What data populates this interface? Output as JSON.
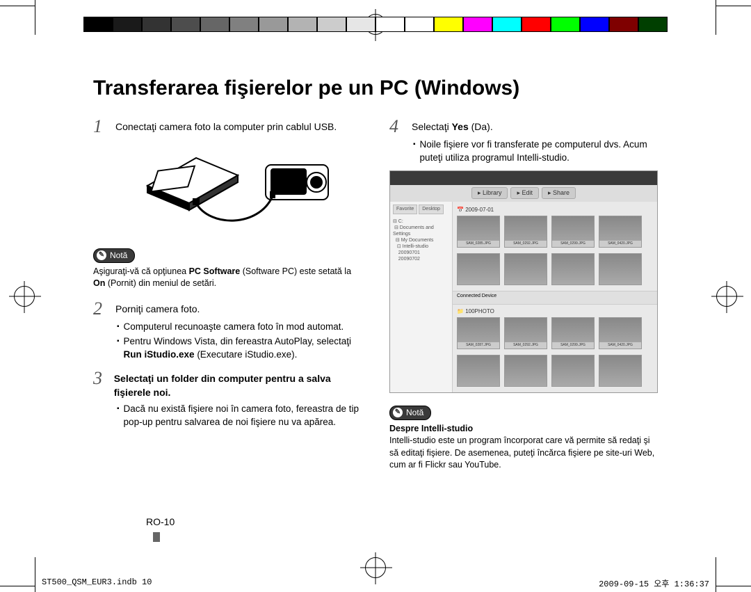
{
  "colorbar": {
    "swatches": [
      "#000000",
      "#1a1a1a",
      "#333333",
      "#4d4d4d",
      "#666666",
      "#808080",
      "#999999",
      "#b3b3b3",
      "#cccccc",
      "#e6e6e6",
      "#ffffff",
      "#ffffff",
      "#ffff00",
      "#ff00ff",
      "#00ffff",
      "#ff0000",
      "#00ff00",
      "#0000ff",
      "#7f0000",
      "#003f00"
    ]
  },
  "title": "Transferarea fişierelor pe un PC (Windows)",
  "steps": {
    "s1_num": "1",
    "s1_text": "Conectaţi camera foto la computer prin cablul USB.",
    "s2_num": "2",
    "s2_text": "Porniţi camera foto.",
    "s2_b1": "Computerul recunoaşte camera foto în mod automat.",
    "s2_b2_pre": "Pentru Windows Vista, din fereastra AutoPlay, selectaţi ",
    "s2_b2_bold": "Run iStudio.exe",
    "s2_b2_post": " (Executare iStudio.exe).",
    "s3_num": "3",
    "s3_text": "Selectaţi un folder din computer pentru a salva fişierele noi.",
    "s3_b1": "Dacă nu există fişiere noi în camera foto, fereastra de tip pop-up pentru salvarea de noi fişiere nu va apărea.",
    "s4_num": "4",
    "s4_pre": "Selectaţi ",
    "s4_bold": "Yes",
    "s4_post": " (Da).",
    "s4_b1": "Noile fişiere vor fi transferate pe computerul dvs. Acum puteţi utiliza programul Intelli-studio."
  },
  "note1": {
    "label": "Notă",
    "pre": "Aşiguraţi-vă că opţiunea ",
    "bold1": "PC Software",
    "mid": " (Software PC) este setată la ",
    "bold2": "On",
    "post": " (Pornit) din meniul de setări."
  },
  "note2": {
    "label": "Notă",
    "heading": "Despre Intelli-studio",
    "text": "Intelli-studio este un program încorporat care vă permite să redaţi şi să editaţi fişiere. De asemenea, puteţi încărca fişiere pe site-uri Web, cum ar fi Flickr sau YouTube."
  },
  "screenshot": {
    "tabs": [
      "Library",
      "Edit",
      "Share"
    ],
    "side_tabs": [
      "Favorite",
      "Desktop"
    ],
    "date1": "2009-07-01",
    "thumbs1": [
      "SAM_0285.JPG",
      "SAM_0292.JPG",
      "SAM_0299.JPG",
      "SAM_0420.JPG"
    ],
    "sep_label": "Connected Device",
    "date2": "100PHOTO",
    "thumbs2": [
      "SAM_0287.JPG",
      "SAM_0292.JPG",
      "SAM_0299.JPG",
      "SAM_0420.JPG"
    ]
  },
  "page_number": "RO-10",
  "footer_left": "ST500_QSM_EUR3.indb   10",
  "footer_right": "2009-09-15   오후 1:36:37"
}
